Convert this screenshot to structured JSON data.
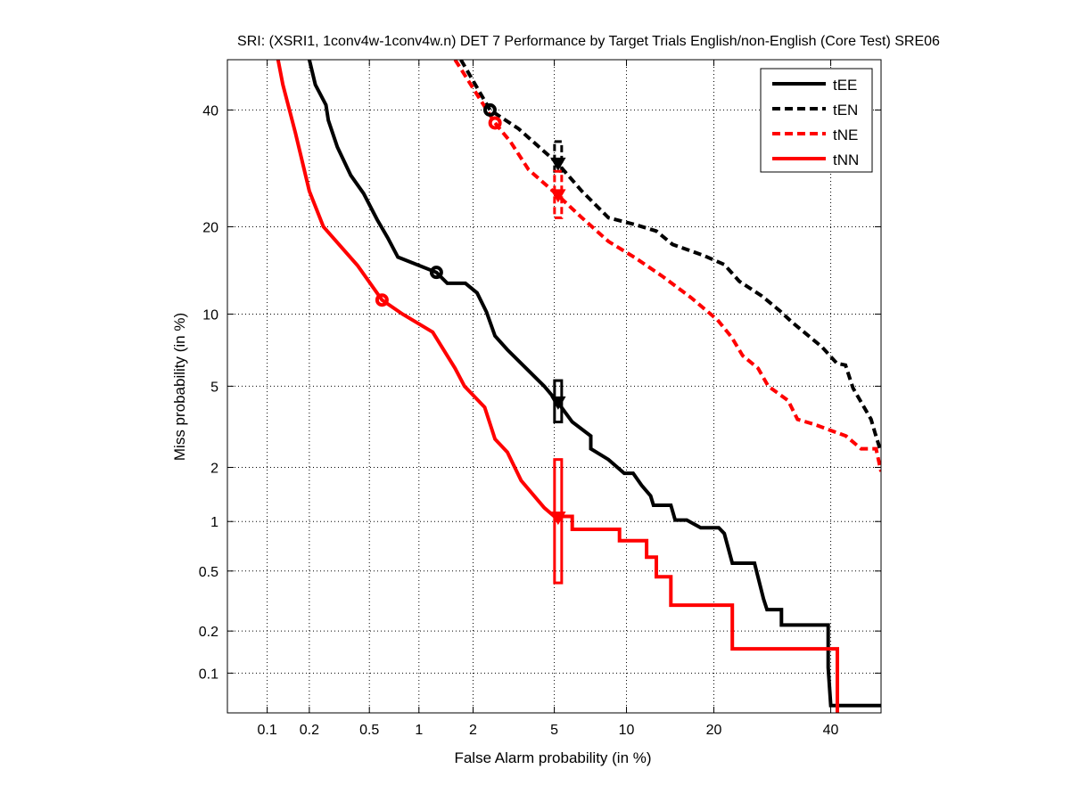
{
  "chart_data": {
    "type": "line",
    "scale": "probit",
    "title": "SRI: (XSRI1, 1conv4w-1conv4w.n) DET 7 Performance by Target Trials English/non-English (Core Test) SRE06",
    "xlabel": "False Alarm probability (in %)",
    "ylabel": "Miss probability (in %)",
    "xlim": [
      0.05,
      50
    ],
    "ylim": [
      0.05,
      50
    ],
    "xticks": [
      0.1,
      0.2,
      0.5,
      1,
      2,
      5,
      10,
      20,
      40
    ],
    "xtick_labels": [
      "0.1",
      "0.2",
      "0.5",
      "1",
      "2",
      "5",
      "10",
      "20",
      "40"
    ],
    "yticks": [
      0.1,
      0.2,
      0.5,
      1,
      2,
      5,
      10,
      20,
      40
    ],
    "ytick_labels": [
      "0.1",
      "0.2",
      "0.5",
      "1",
      "2",
      "5",
      "10",
      "20",
      "40"
    ],
    "grid": true,
    "legend_position": "top-right",
    "series": [
      {
        "name": "tEE",
        "color": "#000000",
        "dash": "solid",
        "points": [
          [
            0.2,
            50
          ],
          [
            0.22,
            45
          ],
          [
            0.26,
            41
          ],
          [
            0.27,
            38
          ],
          [
            0.31,
            33
          ],
          [
            0.38,
            28
          ],
          [
            0.46,
            25
          ],
          [
            0.56,
            21
          ],
          [
            0.65,
            18.5
          ],
          [
            0.75,
            16
          ],
          [
            1.0,
            15
          ],
          [
            1.26,
            14.2
          ],
          [
            1.45,
            13
          ],
          [
            1.82,
            13
          ],
          [
            2.1,
            12
          ],
          [
            2.35,
            10.2
          ],
          [
            2.6,
            8.2
          ],
          [
            3.0,
            7.2
          ],
          [
            3.7,
            6
          ],
          [
            4.5,
            5
          ],
          [
            5.2,
            4.2
          ],
          [
            6.0,
            3.4
          ],
          [
            7.2,
            2.9
          ],
          [
            7.2,
            2.5
          ],
          [
            8.5,
            2.2
          ],
          [
            9.8,
            1.86
          ],
          [
            10.6,
            1.86
          ],
          [
            11.4,
            1.6
          ],
          [
            12.3,
            1.4
          ],
          [
            12.6,
            1.24
          ],
          [
            14.5,
            1.24
          ],
          [
            15,
            1.02
          ],
          [
            16.4,
            1.02
          ],
          [
            18.2,
            0.92
          ],
          [
            20.7,
            0.92
          ],
          [
            21.5,
            0.85
          ],
          [
            22.7,
            0.56
          ],
          [
            26.2,
            0.56
          ],
          [
            27.7,
            0.33
          ],
          [
            28.3,
            0.28
          ],
          [
            30.8,
            0.28
          ],
          [
            30.8,
            0.22
          ],
          [
            39.5,
            0.22
          ],
          [
            39.5,
            0.11
          ],
          [
            40.0,
            0.057
          ],
          [
            50,
            0.057
          ]
        ]
      },
      {
        "name": "tEN",
        "color": "#000000",
        "dash": "dashed",
        "points": [
          [
            1.72,
            50
          ],
          [
            2.45,
            40
          ],
          [
            3.4,
            36.4
          ],
          [
            5.2,
            30
          ],
          [
            6.6,
            25.4
          ],
          [
            8.5,
            21.3
          ],
          [
            10.8,
            20.3
          ],
          [
            12.9,
            19.4
          ],
          [
            14.7,
            17.6
          ],
          [
            18.6,
            16.2
          ],
          [
            21.5,
            15.1
          ],
          [
            23.8,
            13.2
          ],
          [
            27.4,
            11.7
          ],
          [
            30.5,
            10.3
          ],
          [
            32.7,
            9.3
          ],
          [
            38.3,
            7.4
          ],
          [
            41.2,
            6.3
          ],
          [
            42.9,
            6.2
          ],
          [
            44.4,
            4.9
          ],
          [
            48,
            3.5
          ],
          [
            48.8,
            3.0
          ],
          [
            50,
            2.4
          ]
        ]
      },
      {
        "name": "tNE",
        "color": "#ff0000",
        "dash": "dashed",
        "points": [
          [
            1.6,
            50
          ],
          [
            2.6,
            37.5
          ],
          [
            3.1,
            34
          ],
          [
            3.8,
            29
          ],
          [
            5.2,
            24.7
          ],
          [
            6.6,
            21.3
          ],
          [
            8.5,
            18
          ],
          [
            10.8,
            15.9
          ],
          [
            13.5,
            13.8
          ],
          [
            17,
            11.5
          ],
          [
            20.5,
            9.5
          ],
          [
            22.6,
            8.1
          ],
          [
            24.3,
            6.8
          ],
          [
            26.8,
            6.0
          ],
          [
            28.5,
            5.0
          ],
          [
            32,
            4.3
          ],
          [
            33.7,
            3.5
          ],
          [
            37,
            3.3
          ],
          [
            43,
            2.9
          ],
          [
            46,
            2.5
          ],
          [
            49,
            2.5
          ],
          [
            50,
            1.9
          ]
        ]
      },
      {
        "name": "tNN",
        "color": "#ff0000",
        "dash": "solid",
        "points": [
          [
            0.12,
            50
          ],
          [
            0.13,
            45
          ],
          [
            0.16,
            35.6
          ],
          [
            0.2,
            25.4
          ],
          [
            0.25,
            20
          ],
          [
            0.42,
            15
          ],
          [
            0.6,
            11.3
          ],
          [
            0.8,
            10
          ],
          [
            1.2,
            8.5
          ],
          [
            1.6,
            6
          ],
          [
            1.8,
            5
          ],
          [
            2.3,
            4
          ],
          [
            2.6,
            2.8
          ],
          [
            3.0,
            2.4
          ],
          [
            3.5,
            1.7
          ],
          [
            4.5,
            1.2
          ],
          [
            5.0,
            1.07
          ],
          [
            6.0,
            1.07
          ],
          [
            6.0,
            0.9
          ],
          [
            9.4,
            0.9
          ],
          [
            9.4,
            0.77
          ],
          [
            11.9,
            0.77
          ],
          [
            11.9,
            0.61
          ],
          [
            12.9,
            0.61
          ],
          [
            12.9,
            0.46
          ],
          [
            14.5,
            0.46
          ],
          [
            14.5,
            0.3
          ],
          [
            22.7,
            0.3
          ],
          [
            22.7,
            0.15
          ],
          [
            41.3,
            0.15
          ],
          [
            41.3,
            0.05
          ]
        ]
      }
    ],
    "min_dcf_points": [
      {
        "series": "tEE",
        "fa": 1.26,
        "miss": 14.2
      },
      {
        "series": "tEN",
        "fa": 2.45,
        "miss": 40
      },
      {
        "series": "tNE",
        "fa": 2.6,
        "miss": 37.5
      },
      {
        "series": "tNN",
        "fa": 0.6,
        "miss": 11.3
      }
    ],
    "actual_dcf_points": [
      {
        "series": "tEE",
        "fa": 5.2,
        "miss": 4.2,
        "ci": [
          3.4,
          5.3
        ]
      },
      {
        "series": "tEN",
        "fa": 5.2,
        "miss": 30,
        "ci": [
          28.7,
          34
        ]
      },
      {
        "series": "tNE",
        "fa": 5.2,
        "miss": 24.7,
        "ci": [
          21.3,
          28.7
        ]
      },
      {
        "series": "tNN",
        "fa": 5.2,
        "miss": 1.05,
        "ci": [
          0.42,
          2.2
        ]
      }
    ]
  }
}
